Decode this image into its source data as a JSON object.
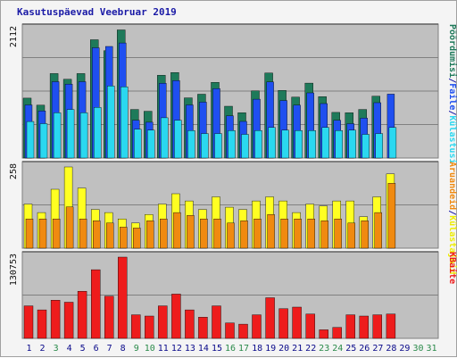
{
  "title": "Kasutuspäevad Veebruar 2019",
  "colors": {
    "background": "#f4f4f4",
    "panel": "#c0c0c0",
    "gridline": "#808080",
    "weekday_label": "#0a0a8a",
    "weekend_label": "#2a8a4a",
    "kuvamisi": "#1e7a5a",
    "failid": "#1f4ff0",
    "kulastused": "#2ad8f0",
    "kulastajad": "#ffff22",
    "kuvamised_orange": "#f08a10",
    "kbaite": "#ee1c1c"
  },
  "chart_data": [
    {
      "type": "bar",
      "panel": "top",
      "ytick": "2112",
      "ylim": [
        0,
        2112
      ],
      "categories": [
        "1",
        "2",
        "3",
        "4",
        "5",
        "6",
        "7",
        "8",
        "9",
        "10",
        "11",
        "12",
        "13",
        "14",
        "15",
        "16",
        "17",
        "18",
        "19",
        "20",
        "21",
        "22",
        "23",
        "24",
        "25",
        "26",
        "27",
        "28",
        "29",
        "30",
        "31"
      ],
      "series": [
        {
          "name": "Pöördumisi",
          "color": "#1e7a5a",
          "values": [
            984,
            869,
            1387,
            1293,
            1387,
            1944,
            1763,
            2105,
            798,
            769,
            1360,
            1405,
            989,
            1048,
            1244,
            850,
            744,
            1103,
            1396,
            1110,
            1001,
            1231,
            1008,
            749,
            744,
            798,
            1017,
            null,
            null,
            null,
            null
          ]
        },
        {
          "name": "Failid",
          "color": "#1f4ff0",
          "values": [
            873,
            774,
            1254,
            1214,
            1254,
            1812,
            1834,
            1891,
            620,
            588,
            1227,
            1272,
            873,
            918,
            1141,
            694,
            602,
            966,
            1249,
            944,
            868,
            1071,
            894,
            620,
            564,
            656,
            909,
            1050,
            null,
            null,
            null
          ]
        },
        {
          "name": "Külastusi",
          "color": "#2ad8f0",
          "values": [
            600,
            564,
            744,
            798,
            744,
            831,
            1184,
            1171,
            472,
            457,
            661,
            620,
            452,
            402,
            402,
            452,
            389,
            452,
            502,
            457,
            452,
            452,
            502,
            452,
            457,
            389,
            402,
            502,
            null,
            null,
            null
          ]
        }
      ]
    },
    {
      "type": "bar",
      "panel": "middle",
      "ytick": "258",
      "ylim": [
        0,
        258
      ],
      "categories": [
        "1",
        "2",
        "3",
        "4",
        "5",
        "6",
        "7",
        "8",
        "9",
        "10",
        "11",
        "12",
        "13",
        "14",
        "15",
        "16",
        "17",
        "18",
        "19",
        "20",
        "21",
        "22",
        "23",
        "24",
        "25",
        "26",
        "27",
        "28",
        "29",
        "30",
        "31"
      ],
      "series": [
        {
          "name": "Külastajaid",
          "color": "#ffff22",
          "values": [
            140,
            113,
            187,
            258,
            191,
            123,
            113,
            93,
            80,
            107,
            140,
            173,
            150,
            123,
            163,
            130,
            123,
            150,
            163,
            150,
            113,
            140,
            134,
            150,
            150,
            100,
            163,
            236,
            null,
            null,
            null
          ]
        },
        {
          "name": "Aruandeid",
          "color": "#f08a10",
          "values": [
            93,
            93,
            93,
            131,
            93,
            87,
            80,
            67,
            64,
            87,
            93,
            113,
            104,
            93,
            93,
            80,
            87,
            93,
            107,
            93,
            93,
            93,
            87,
            93,
            80,
            87,
            113,
            206,
            null,
            null,
            null
          ]
        }
      ]
    },
    {
      "type": "bar",
      "panel": "bottom",
      "ytick": "130753",
      "ylim": [
        0,
        130753
      ],
      "categories": [
        "1",
        "2",
        "3",
        "4",
        "5",
        "6",
        "7",
        "8",
        "9",
        "10",
        "11",
        "12",
        "13",
        "14",
        "15",
        "16",
        "17",
        "18",
        "19",
        "20",
        "21",
        "22",
        "23",
        "24",
        "25",
        "26",
        "27",
        "28",
        "29",
        "30",
        "31"
      ],
      "series": [
        {
          "name": "KBaite",
          "color": "#ee1c1c",
          "values": [
            52303,
            45765,
            61456,
            58187,
            75840,
            110494,
            67994,
            130753,
            37919,
            35958,
            52303,
            71264,
            45765,
            33996,
            52303,
            24844,
            22883,
            37919,
            65379,
            47727,
            50341,
            39227,
            13730,
            17652,
            37919,
            35958,
            37919,
            39227,
            null,
            null,
            null
          ]
        }
      ]
    }
  ],
  "x_weekend_days": [
    "3",
    "9",
    "10",
    "16",
    "17",
    "23",
    "24",
    "30",
    "31"
  ],
  "legend_right": {
    "top": [
      "Pöördumisi",
      "/",
      "Faile",
      "/",
      "Külastusi"
    ],
    "middle": [
      "Aruandeid",
      "/",
      "Külastajaid"
    ],
    "bottom": [
      "KBaite"
    ]
  },
  "legend_colors": {
    "Pöördumisi": "#1e7a5a",
    "Faile": "#1f4ff0",
    "Külastusi": "#2ad8f0",
    "Külastajaid": "#eeee00",
    "Aruandeid": "#f08a10",
    "KBaite": "#ee1c1c",
    "/": "#1a1aa6"
  }
}
